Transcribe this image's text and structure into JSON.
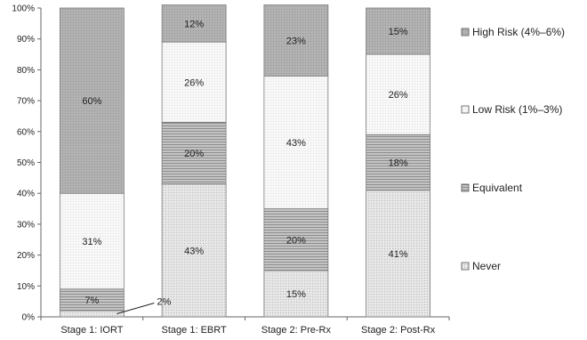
{
  "chart_data": {
    "type": "bar",
    "stacked": true,
    "categories": [
      "Stage 1: IORT",
      "Stage 1: EBRT",
      "Stage 2: Pre-Rx",
      "Stage 2: Post-Rx"
    ],
    "series": [
      {
        "name": "Never",
        "values": [
          2,
          43,
          15,
          41
        ],
        "labels": [
          "2%",
          "43%",
          "15%",
          "41%"
        ],
        "color": "#e3e3e3",
        "pattern": "dots"
      },
      {
        "name": "Equivalent",
        "values": [
          7,
          20,
          20,
          18
        ],
        "labels": [
          "7%",
          "20%",
          "20%",
          "18%"
        ],
        "color": "#b4b4b4",
        "pattern": "hlines"
      },
      {
        "name": "Low Risk (1%–3%)",
        "values": [
          31,
          26,
          43,
          26
        ],
        "labels": [
          "31%",
          "26%",
          "43%",
          "26%"
        ],
        "color": "#f7f7f7",
        "pattern": "fine-dots"
      },
      {
        "name": "High Risk (4%–6%)",
        "values": [
          60,
          12,
          23,
          15
        ],
        "labels": [
          "60%",
          "12%",
          "23%",
          "15%"
        ],
        "color": "#a9a9a9",
        "pattern": "fine-dots"
      }
    ],
    "legend_order": [
      "High Risk (4%–6%)",
      "Low Risk (1%–3%)",
      "Equivalent",
      "Never"
    ],
    "ylim": [
      0,
      100
    ],
    "yticks": [
      "0%",
      "10%",
      "20%",
      "30%",
      "40%",
      "50%",
      "60%",
      "70%",
      "80%",
      "90%",
      "100%"
    ],
    "grid": false,
    "legend_position": "right",
    "title": "",
    "xlabel": "",
    "ylabel": ""
  }
}
